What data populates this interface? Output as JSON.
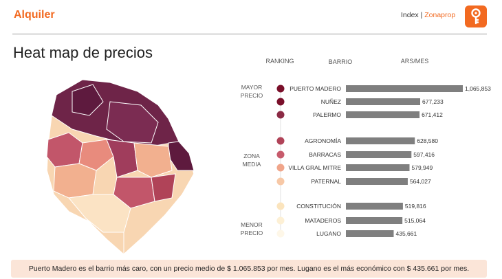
{
  "header": {
    "brand": "Alquiler",
    "link_index": "Index",
    "separator": " | ",
    "link_zonaprop": "Zonaprop",
    "logo_icon": "location-key-icon"
  },
  "title": "Heat map de precios",
  "chart_data": {
    "type": "bar",
    "columns": [
      "RANKING",
      "BARRIO",
      "ARS/MES"
    ],
    "groups": [
      {
        "label_lines": [
          "MAYOR",
          "PRECIO"
        ]
      },
      {
        "label_lines": [
          "ZONA",
          "MEDIA"
        ]
      },
      {
        "label_lines": [
          "MENOR",
          "PRECIO"
        ]
      }
    ],
    "categories": [
      "PUERTO MADERO",
      "NUÑEZ",
      "PALERMO",
      "AGRONOMÍA",
      "BARRACAS",
      "VILLA GRAL MITRE",
      "PATERNAL",
      "CONSTITUCIÓN",
      "MATADEROS",
      "LUGANO"
    ],
    "values": [
      1065853,
      677233,
      671412,
      628580,
      597416,
      579949,
      564027,
      519816,
      515064,
      435661
    ],
    "value_labels": [
      "1,065,853",
      "677,233",
      "671,412",
      "628,580",
      "597,416",
      "579,949",
      "564,027",
      "519,816",
      "515,064",
      "435,661"
    ],
    "group_index": [
      0,
      0,
      0,
      1,
      1,
      1,
      1,
      2,
      2,
      2
    ],
    "dot_colors": [
      "#7a0f2a",
      "#7a0f2a",
      "#8b2a45",
      "#b04358",
      "#c75b6c",
      "#f0a58a",
      "#f7c8a6",
      "#fbe4bd",
      "#fdf0d5",
      "#fef7e8"
    ],
    "bar_color": "#7f7f7f",
    "xlim": [
      0,
      1065853
    ]
  },
  "footer": {
    "text": "Puerto Madero es el barrio más caro, con un precio medio de $ 1.065.853 por mes. Lugano es el más económico con $ 435.661 por mes."
  },
  "map": {
    "icon": "buenos-aires-heatmap",
    "colors": [
      "#5e1a3e",
      "#7b2c52",
      "#a03d5c",
      "#c2566a",
      "#e88b7d",
      "#f2b08f",
      "#f8d6b2",
      "#fbe3c4"
    ]
  }
}
